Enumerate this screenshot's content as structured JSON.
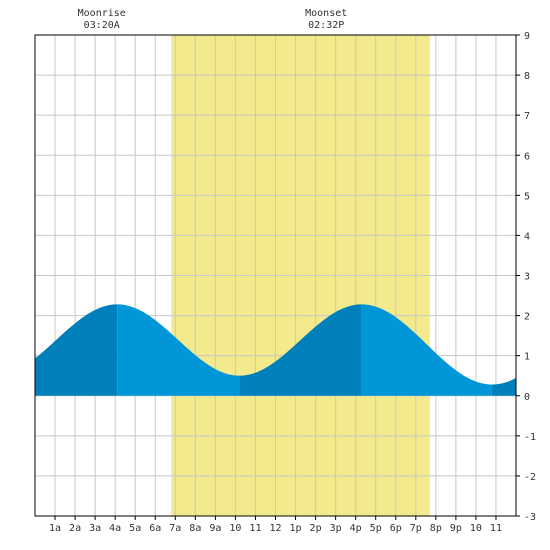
{
  "chart_data": {
    "type": "area",
    "title": "",
    "xlabel": "",
    "ylabel": "",
    "xlim": [
      0,
      24
    ],
    "ylim": [
      -3,
      9
    ],
    "y_ticks": [
      -3,
      -2,
      -1,
      0,
      1,
      2,
      3,
      4,
      5,
      6,
      7,
      8,
      9
    ],
    "x_tick_labels": [
      "1a",
      "2a",
      "3a",
      "4a",
      "5a",
      "6a",
      "7a",
      "8a",
      "9a",
      "10",
      "11",
      "12",
      "1p",
      "2p",
      "3p",
      "4p",
      "5p",
      "6p",
      "7p",
      "8p",
      "9p",
      "10",
      "11"
    ],
    "grid": true,
    "daylight": {
      "start_hour": 6.8,
      "end_hour": 19.7
    },
    "tide_extremes": [
      {
        "x": 4.1,
        "y": 2.28
      },
      {
        "x": 10.2,
        "y": 0.5
      },
      {
        "x": 16.3,
        "y": 2.28
      },
      {
        "x": 22.8,
        "y": 0.28
      }
    ],
    "tide_start_y": 1.05,
    "tide_end_y": 0.55,
    "annotations": [
      {
        "label": "Moonrise",
        "time": "03:20A",
        "x": 3.33
      },
      {
        "label": "Moonset",
        "time": "02:32P",
        "x": 14.53
      }
    ],
    "colors": {
      "daylight": "#f2ea8c",
      "tide_dark": "#0080bb",
      "tide_light": "#0096d8",
      "grid": "#c8c8c8",
      "axis": "#000000",
      "text": "#333333"
    }
  }
}
